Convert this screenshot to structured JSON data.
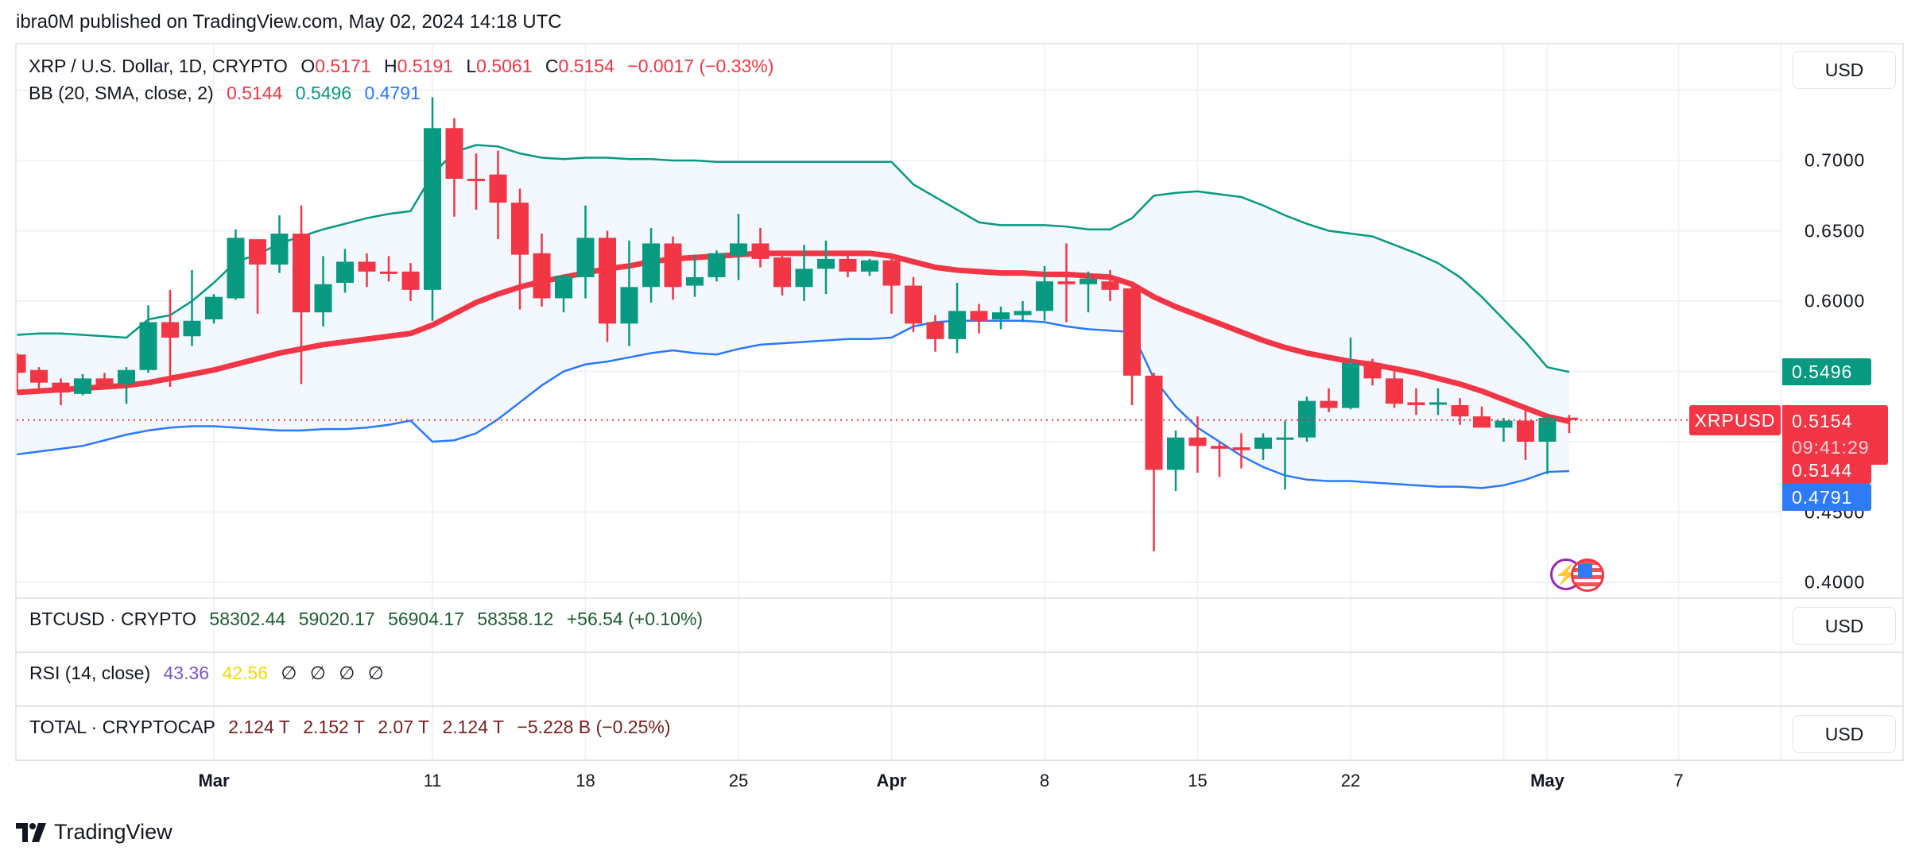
{
  "publisher": "ibra0M published on TradingView.com, May 02, 2024 14:18 UTC",
  "main": {
    "symbol": "XRP / U.S. Dollar, 1D, CRYPTO",
    "o_label": "O",
    "o": "0.5171",
    "h_label": "H",
    "h": "0.5191",
    "l_label": "L",
    "l": "0.5061",
    "c_label": "C",
    "c": "0.5154",
    "change": "−0.0017 (−0.33%)",
    "bb_label": "BB (20, SMA, close, 2)",
    "bb_basis": "0.5144",
    "bb_upper": "0.5496",
    "bb_lower": "0.4791",
    "currency": "USD",
    "symbol_tag": "XRPUSD",
    "price_tag": "0.5154",
    "countdown": "09:41:29",
    "basis_tag": "0.5144",
    "upper_tag": "0.5496",
    "lower_tag": "0.4791"
  },
  "price_axis": {
    "ticks": [
      "0.7000",
      "0.6500",
      "0.6000",
      "0.4500",
      "0.4000"
    ]
  },
  "btc": {
    "label": "BTCUSD · CRYPTO",
    "values": [
      "58302.44",
      "59020.17",
      "56904.17",
      "58358.12",
      "+56.54 (+0.10%)"
    ],
    "currency": "USD"
  },
  "rsi": {
    "label": "RSI (14, close)",
    "v1": "43.36",
    "v2": "42.56",
    "nulls": [
      "∅",
      "∅",
      "∅",
      "∅"
    ]
  },
  "total": {
    "label": "TOTAL · CRYPTOCAP",
    "values": [
      "2.124 T",
      "2.152 T",
      "2.07 T",
      "2.124 T",
      "−5.228 B (−0.25%)"
    ],
    "currency": "USD"
  },
  "time_axis": [
    {
      "label": "Mar",
      "date": "2024-03-01",
      "bold": true
    },
    {
      "label": "11",
      "date": "2024-03-11"
    },
    {
      "label": "18",
      "date": "2024-03-18"
    },
    {
      "label": "25",
      "date": "2024-03-25"
    },
    {
      "label": "Apr",
      "date": "2024-04-01",
      "bold": true
    },
    {
      "label": "8",
      "date": "2024-04-08"
    },
    {
      "label": "15",
      "date": "2024-04-15"
    },
    {
      "label": "22",
      "date": "2024-04-22"
    },
    {
      "label": "May",
      "date": "2024-05-01",
      "bold": true
    },
    {
      "label": "7",
      "date": "2024-05-07"
    }
  ],
  "brand": "TradingView",
  "colors": {
    "up": "#089981",
    "down": "#F23645",
    "basis": "#F23645",
    "upper": "#089981",
    "lower": "#2979FF",
    "band_fill": "#F2F8FD",
    "btc": "#1E5E32",
    "total": "#7A1F1F",
    "rsi1": "#7E57C2",
    "rsi2": "#F5D90A"
  },
  "icons": [
    "lightning-event-icon",
    "us-flag-event-icon",
    "tradingview-logo-icon"
  ],
  "chart_data": {
    "type": "candlestick",
    "start_date": "2024-02-21",
    "ylim": [
      0.39,
      0.76
    ],
    "grid": true,
    "ohlc": [
      [
        0.562,
        0.563,
        0.535,
        0.549
      ],
      [
        0.551,
        0.553,
        0.537,
        0.542
      ],
      [
        0.542,
        0.545,
        0.526,
        0.535
      ],
      [
        0.534,
        0.548,
        0.533,
        0.545
      ],
      [
        0.545,
        0.549,
        0.538,
        0.54
      ],
      [
        0.541,
        0.553,
        0.527,
        0.551
      ],
      [
        0.551,
        0.597,
        0.549,
        0.585
      ],
      [
        0.585,
        0.608,
        0.539,
        0.574
      ],
      [
        0.575,
        0.622,
        0.568,
        0.586
      ],
      [
        0.587,
        0.605,
        0.584,
        0.603
      ],
      [
        0.602,
        0.651,
        0.601,
        0.645
      ],
      [
        0.644,
        0.644,
        0.591,
        0.626
      ],
      [
        0.626,
        0.661,
        0.62,
        0.648
      ],
      [
        0.648,
        0.668,
        0.541,
        0.592
      ],
      [
        0.592,
        0.632,
        0.582,
        0.612
      ],
      [
        0.613,
        0.637,
        0.606,
        0.628
      ],
      [
        0.628,
        0.634,
        0.61,
        0.621
      ],
      [
        0.621,
        0.632,
        0.614,
        0.62
      ],
      [
        0.621,
        0.627,
        0.6,
        0.608
      ],
      [
        0.608,
        0.745,
        0.586,
        0.723
      ],
      [
        0.723,
        0.73,
        0.66,
        0.687
      ],
      [
        0.687,
        0.705,
        0.665,
        0.686
      ],
      [
        0.69,
        0.707,
        0.644,
        0.67
      ],
      [
        0.67,
        0.68,
        0.594,
        0.633
      ],
      [
        0.634,
        0.648,
        0.596,
        0.602
      ],
      [
        0.602,
        0.619,
        0.592,
        0.618
      ],
      [
        0.617,
        0.668,
        0.602,
        0.645
      ],
      [
        0.645,
        0.65,
        0.571,
        0.584
      ],
      [
        0.584,
        0.643,
        0.568,
        0.61
      ],
      [
        0.61,
        0.652,
        0.599,
        0.641
      ],
      [
        0.641,
        0.646,
        0.601,
        0.61
      ],
      [
        0.611,
        0.633,
        0.603,
        0.617
      ],
      [
        0.617,
        0.636,
        0.614,
        0.634
      ],
      [
        0.632,
        0.662,
        0.615,
        0.641
      ],
      [
        0.641,
        0.652,
        0.624,
        0.63
      ],
      [
        0.631,
        0.634,
        0.604,
        0.61
      ],
      [
        0.61,
        0.64,
        0.6,
        0.623
      ],
      [
        0.623,
        0.643,
        0.605,
        0.63
      ],
      [
        0.63,
        0.633,
        0.617,
        0.621
      ],
      [
        0.621,
        0.63,
        0.618,
        0.629
      ],
      [
        0.629,
        0.632,
        0.591,
        0.611
      ],
      [
        0.611,
        0.617,
        0.578,
        0.584
      ],
      [
        0.585,
        0.59,
        0.564,
        0.573
      ],
      [
        0.573,
        0.613,
        0.563,
        0.593
      ],
      [
        0.593,
        0.598,
        0.577,
        0.586
      ],
      [
        0.587,
        0.596,
        0.58,
        0.592
      ],
      [
        0.59,
        0.6,
        0.585,
        0.593
      ],
      [
        0.593,
        0.625,
        0.586,
        0.614
      ],
      [
        0.614,
        0.641,
        0.585,
        0.612
      ],
      [
        0.612,
        0.621,
        0.592,
        0.616
      ],
      [
        0.614,
        0.622,
        0.6,
        0.608
      ],
      [
        0.609,
        0.613,
        0.526,
        0.547
      ],
      [
        0.547,
        0.549,
        0.422,
        0.48
      ],
      [
        0.48,
        0.508,
        0.465,
        0.503
      ],
      [
        0.503,
        0.518,
        0.478,
        0.497
      ],
      [
        0.497,
        0.5,
        0.475,
        0.495
      ],
      [
        0.496,
        0.506,
        0.481,
        0.494
      ],
      [
        0.495,
        0.506,
        0.487,
        0.503
      ],
      [
        0.502,
        0.515,
        0.466,
        0.503
      ],
      [
        0.503,
        0.532,
        0.5,
        0.529
      ],
      [
        0.529,
        0.538,
        0.521,
        0.524
      ],
      [
        0.524,
        0.574,
        0.523,
        0.556
      ],
      [
        0.556,
        0.559,
        0.54,
        0.545
      ],
      [
        0.545,
        0.551,
        0.524,
        0.527
      ],
      [
        0.528,
        0.538,
        0.519,
        0.526
      ],
      [
        0.527,
        0.538,
        0.519,
        0.528
      ],
      [
        0.526,
        0.531,
        0.512,
        0.518
      ],
      [
        0.518,
        0.525,
        0.51,
        0.51
      ],
      [
        0.51,
        0.517,
        0.5,
        0.515
      ],
      [
        0.515,
        0.522,
        0.487,
        0.5
      ],
      [
        0.5,
        0.519,
        0.477,
        0.517
      ],
      [
        0.5171,
        0.5191,
        0.5061,
        0.5154
      ]
    ],
    "bb_upper": [
      0.576,
      0.577,
      0.577,
      0.576,
      0.575,
      0.574,
      0.587,
      0.59,
      0.6,
      0.613,
      0.628,
      0.633,
      0.641,
      0.646,
      0.651,
      0.655,
      0.659,
      0.662,
      0.664,
      0.69,
      0.706,
      0.711,
      0.71,
      0.705,
      0.702,
      0.701,
      0.702,
      0.702,
      0.701,
      0.701,
      0.7,
      0.7,
      0.699,
      0.699,
      0.699,
      0.699,
      0.699,
      0.699,
      0.699,
      0.699,
      0.699,
      0.683,
      0.674,
      0.665,
      0.656,
      0.654,
      0.654,
      0.654,
      0.653,
      0.651,
      0.651,
      0.659,
      0.675,
      0.677,
      0.678,
      0.676,
      0.674,
      0.668,
      0.661,
      0.655,
      0.65,
      0.648,
      0.646,
      0.64,
      0.634,
      0.627,
      0.617,
      0.603,
      0.587,
      0.571,
      0.553,
      0.5496
    ],
    "bb_basis": [
      0.535,
      0.536,
      0.537,
      0.538,
      0.539,
      0.54,
      0.542,
      0.545,
      0.548,
      0.551,
      0.555,
      0.559,
      0.563,
      0.566,
      0.569,
      0.571,
      0.573,
      0.575,
      0.577,
      0.583,
      0.591,
      0.599,
      0.605,
      0.61,
      0.614,
      0.617,
      0.62,
      0.623,
      0.625,
      0.628,
      0.63,
      0.631,
      0.632,
      0.633,
      0.634,
      0.634,
      0.634,
      0.634,
      0.634,
      0.634,
      0.632,
      0.628,
      0.624,
      0.622,
      0.621,
      0.62,
      0.62,
      0.619,
      0.619,
      0.618,
      0.617,
      0.612,
      0.603,
      0.596,
      0.59,
      0.584,
      0.578,
      0.572,
      0.567,
      0.563,
      0.56,
      0.557,
      0.555,
      0.552,
      0.549,
      0.545,
      0.541,
      0.536,
      0.53,
      0.524,
      0.518,
      0.5144
    ],
    "bb_lower": [
      0.491,
      0.493,
      0.495,
      0.497,
      0.501,
      0.505,
      0.508,
      0.51,
      0.511,
      0.511,
      0.51,
      0.509,
      0.508,
      0.508,
      0.509,
      0.509,
      0.51,
      0.512,
      0.515,
      0.5,
      0.501,
      0.506,
      0.516,
      0.528,
      0.54,
      0.55,
      0.555,
      0.557,
      0.56,
      0.563,
      0.565,
      0.563,
      0.562,
      0.566,
      0.569,
      0.57,
      0.571,
      0.572,
      0.573,
      0.573,
      0.574,
      0.582,
      0.585,
      0.586,
      0.586,
      0.586,
      0.586,
      0.585,
      0.582,
      0.58,
      0.579,
      0.578,
      0.545,
      0.525,
      0.51,
      0.5,
      0.49,
      0.482,
      0.476,
      0.473,
      0.472,
      0.472,
      0.471,
      0.47,
      0.469,
      0.468,
      0.468,
      0.467,
      0.469,
      0.473,
      0.4785,
      0.4791
    ],
    "last_price": 0.5154
  }
}
